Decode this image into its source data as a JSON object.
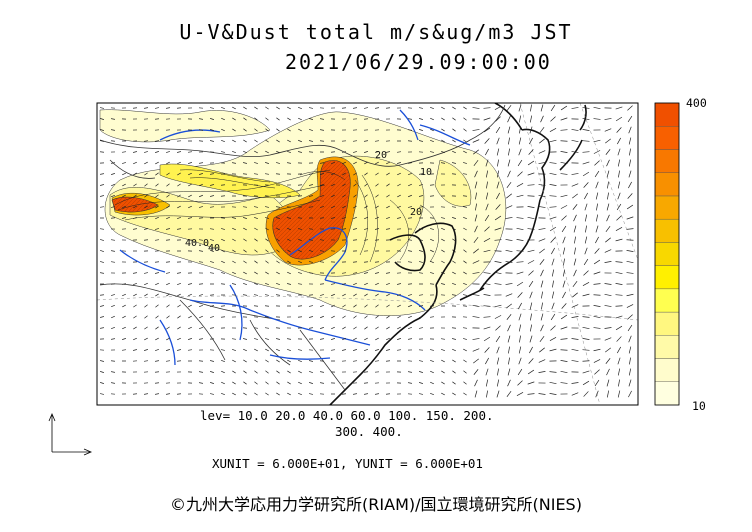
{
  "title": "U-V&Dust total m/s&ug/m3 JST",
  "datetime": "2021/06/29.09:00:00",
  "map_labels": [
    "40.0",
    "40",
    "20",
    "10",
    "20"
  ],
  "levels_line1": "lev= 10.0 20.0 40.0 60.0 100. 150. 200.",
  "levels_line2": "300. 400.",
  "units": "XUNIT = 6.000E+01, YUNIT = 6.000E+01",
  "colorbar": {
    "max_label": "400",
    "min_label": "10",
    "colors": [
      "#ffffe0",
      "#fffccc",
      "#fffaa8",
      "#fff780",
      "#ffff50",
      "#fff000",
      "#f8d800",
      "#f8c000",
      "#f8a800",
      "#f89000",
      "#f87800",
      "#f86000",
      "#f05000"
    ]
  },
  "credit": "©九州大学応用力学研究所(RIAM)/国立環境研究所(NIES)"
}
